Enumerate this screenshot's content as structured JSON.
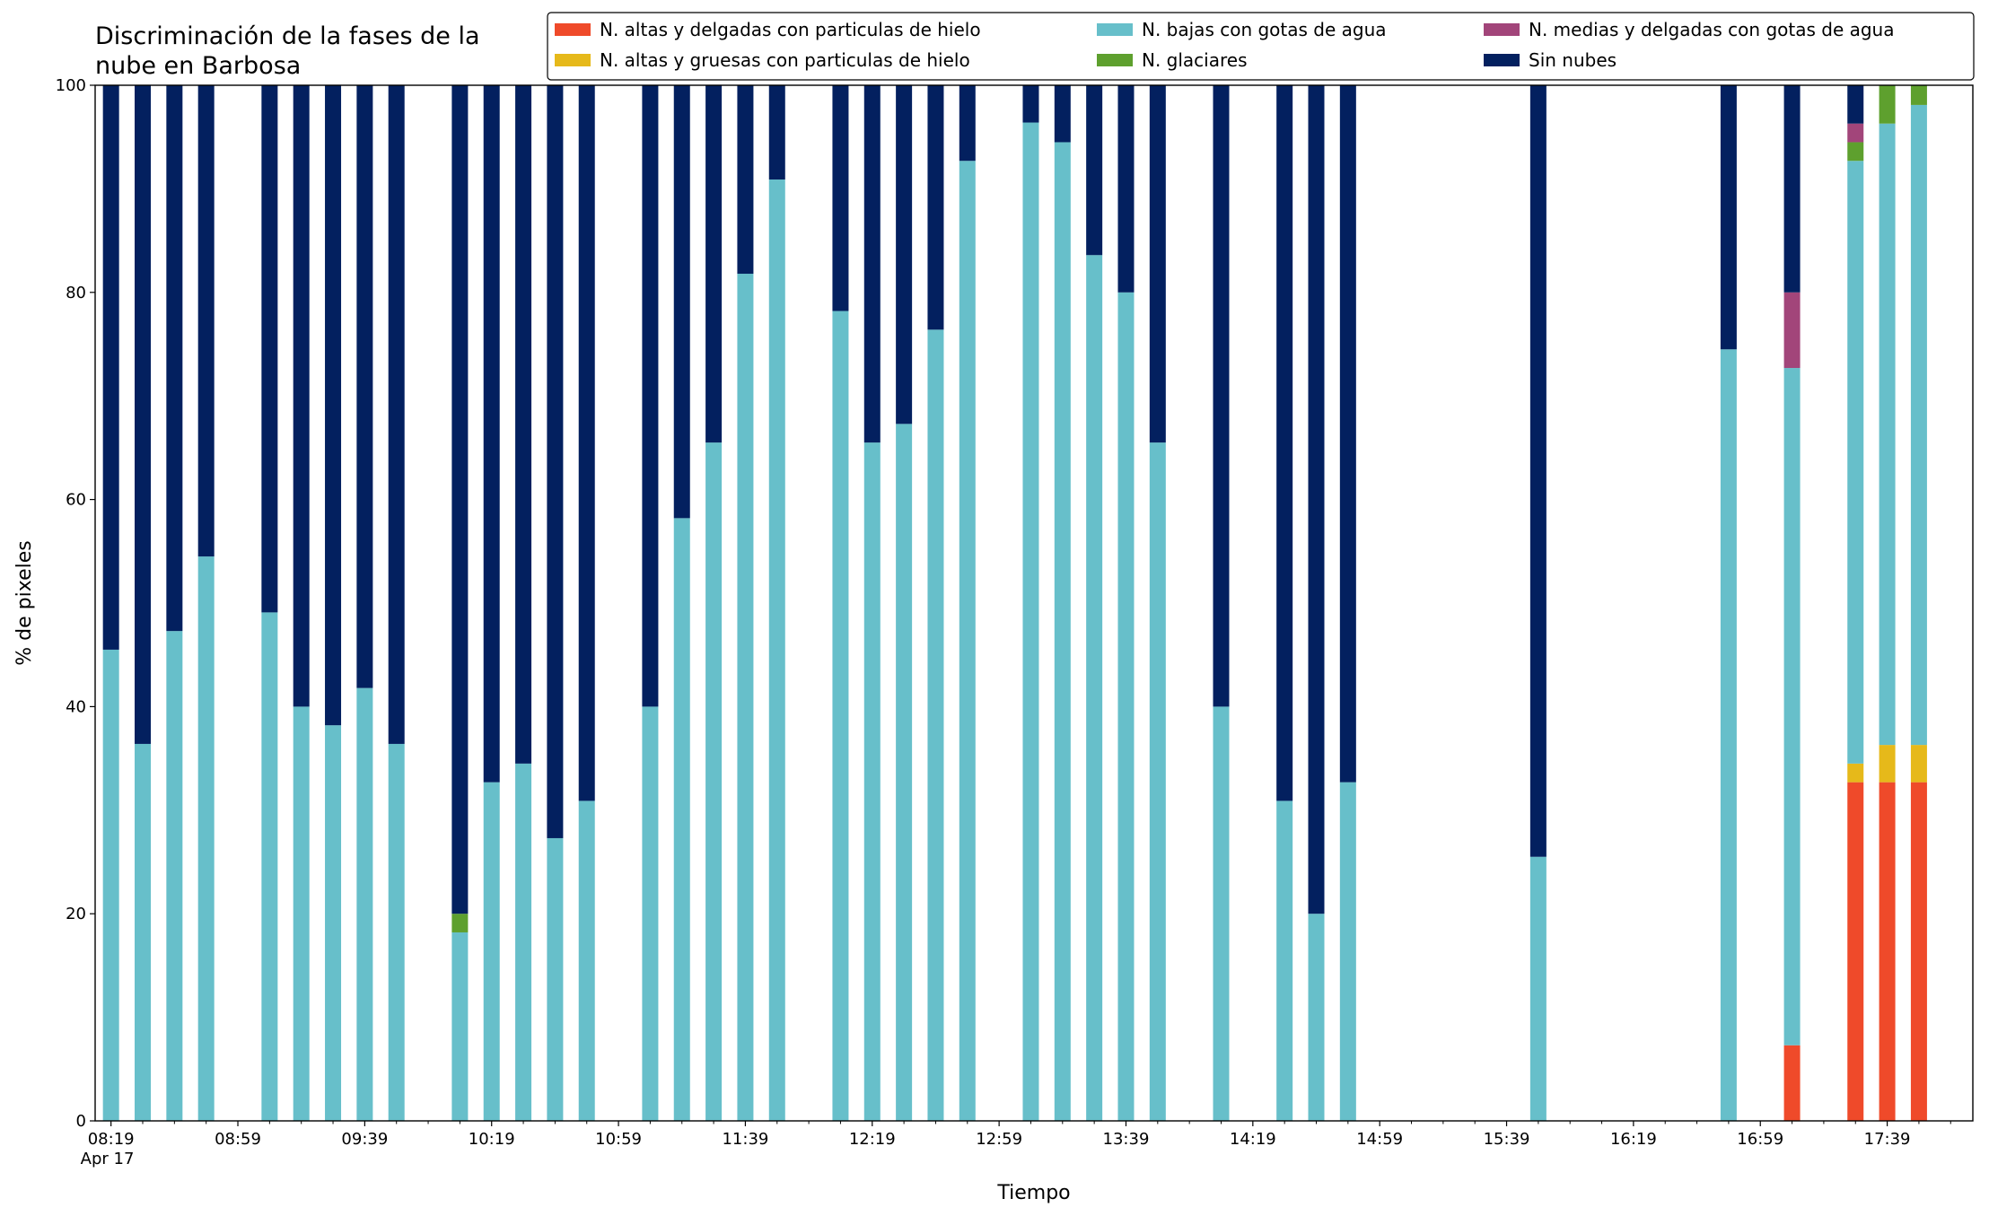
{
  "chart_data": {
    "type": "stacked_bar",
    "title": [
      "Discriminación de la fases de la",
      "nube en Barbosa"
    ],
    "xlabel": "Tiempo",
    "ylabel": "% de pixeles",
    "date_label": "Apr 17",
    "x": [
      "08:19",
      "08:29",
      "08:39",
      "08:49",
      "09:09",
      "09:19",
      "09:29",
      "09:39",
      "09:49",
      "10:09",
      "10:19",
      "10:29",
      "10:39",
      "10:49",
      "11:09",
      "11:19",
      "11:29",
      "11:39",
      "11:49",
      "12:09",
      "12:19",
      "12:29",
      "12:39",
      "12:49",
      "13:09",
      "13:19",
      "13:29",
      "13:39",
      "13:49",
      "14:09",
      "14:29",
      "14:39",
      "14:49",
      "15:49",
      "16:49",
      "17:09",
      "17:29",
      "17:39",
      "17:49"
    ],
    "xlim": [
      "08:14",
      "18:06"
    ],
    "xticks": [
      "08:19",
      "08:59",
      "09:39",
      "10:19",
      "10:59",
      "11:39",
      "12:19",
      "12:59",
      "13:39",
      "14:19",
      "14:59",
      "15:39",
      "16:19",
      "16:59",
      "17:39"
    ],
    "ylim": [
      0,
      100
    ],
    "yticks": [
      0,
      20,
      40,
      60,
      80,
      100
    ],
    "legend": "top-right",
    "series": [
      {
        "name": "N. altas y delgadas con particulas de hielo",
        "color": "#ef4a2a",
        "values": [
          0,
          0,
          0,
          0,
          0,
          0,
          0,
          0,
          0,
          0,
          0,
          0,
          0,
          0,
          0,
          0,
          0,
          0,
          0,
          0,
          0,
          0,
          0,
          0,
          0,
          0,
          0,
          0,
          0,
          0,
          0,
          0,
          0,
          0,
          0,
          7.3,
          32.7,
          32.7,
          32.7
        ]
      },
      {
        "name": "N. altas y gruesas con particulas de hielo",
        "color": "#e6b91a",
        "values": [
          0,
          0,
          0,
          0,
          0,
          0,
          0,
          0,
          0,
          0,
          0,
          0,
          0,
          0,
          0,
          0,
          0,
          0,
          0,
          0,
          0,
          0,
          0,
          0,
          0,
          0,
          0,
          0,
          0,
          0,
          0,
          0,
          0,
          0,
          0,
          0,
          1.8,
          3.6,
          3.6
        ]
      },
      {
        "name": "N. bajas con gotas de agua",
        "color": "#67bfca",
        "values": [
          45.5,
          36.4,
          47.3,
          54.5,
          49.1,
          40,
          38.2,
          41.8,
          36.4,
          18.2,
          32.7,
          34.5,
          27.3,
          30.9,
          40,
          58.2,
          65.5,
          81.8,
          90.9,
          78.2,
          65.5,
          67.3,
          76.4,
          92.7,
          96.4,
          94.5,
          83.6,
          80,
          65.5,
          40,
          30.9,
          20,
          32.7,
          25.5,
          74.5,
          65.4,
          58.2,
          60,
          61.8
        ]
      },
      {
        "name": "N. glaciares",
        "color": "#5ea02e",
        "values": [
          0,
          0,
          0,
          0,
          0,
          0,
          0,
          0,
          0,
          1.8,
          0,
          0,
          0,
          0,
          0,
          0,
          0,
          0,
          0,
          0,
          0,
          0,
          0,
          0,
          0,
          0,
          0,
          0,
          0,
          0,
          0,
          0,
          0,
          0,
          0,
          0,
          1.8,
          3.7,
          1.9
        ]
      },
      {
        "name": "N. medias y delgadas con gotas de agua",
        "color": "#a2457a",
        "values": [
          0,
          0,
          0,
          0,
          0,
          0,
          0,
          0,
          0,
          0,
          0,
          0,
          0,
          0,
          0,
          0,
          0,
          0,
          0,
          0,
          0,
          0,
          0,
          0,
          0,
          0,
          0,
          0,
          0,
          0,
          0,
          0,
          0,
          0,
          0,
          7.3,
          1.8,
          0,
          0
        ]
      },
      {
        "name": "Sin nubes",
        "color": "#03205f",
        "values": [
          54.5,
          63.6,
          52.7,
          45.5,
          50.9,
          60,
          61.8,
          58.2,
          63.6,
          80,
          67.3,
          65.5,
          72.7,
          69.1,
          60,
          41.8,
          34.5,
          18.2,
          9.1,
          21.8,
          34.5,
          32.7,
          23.6,
          7.3,
          3.6,
          5.5,
          16.4,
          20,
          34.5,
          60,
          69.1,
          80,
          67.3,
          74.5,
          25.5,
          20,
          3.7,
          0,
          0
        ]
      }
    ]
  }
}
